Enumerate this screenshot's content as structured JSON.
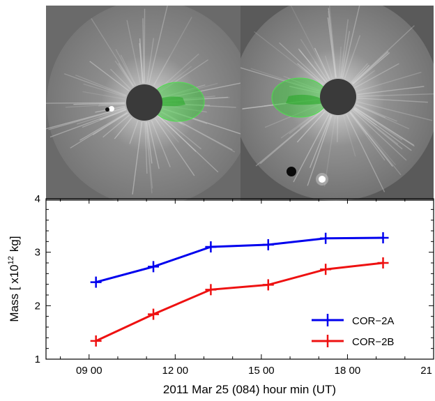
{
  "images": {
    "left_panel": "coronagraph-difference-image-cor2b",
    "right_panel": "coronagraph-difference-image-cor2a"
  },
  "chart_data": {
    "type": "line",
    "xlabel": "2011 Mar 25 (084)  hour min (UT)",
    "ylabel": "Mass  [ x10",
    "ylabel_exponent": "12",
    "ylabel_unit": "kg]",
    "xlim": [
      7.5,
      21.0
    ],
    "ylim": [
      1,
      4
    ],
    "x_ticks": [
      {
        "value": 9.0,
        "label": "09 00"
      },
      {
        "value": 12.0,
        "label": "12 00"
      },
      {
        "value": 15.0,
        "label": "15 00"
      },
      {
        "value": 18.0,
        "label": "18 00"
      },
      {
        "value": 21.0,
        "label": "21 00"
      }
    ],
    "y_ticks": [
      {
        "value": 1,
        "label": "1"
      },
      {
        "value": 2,
        "label": "2"
      },
      {
        "value": 3,
        "label": "3"
      },
      {
        "value": 4,
        "label": "4"
      }
    ],
    "legend_position": "bottom-right",
    "series": [
      {
        "name": "COR−2A",
        "color": "#0000ee",
        "x": [
          9.24,
          11.24,
          13.24,
          15.24,
          17.24,
          19.24
        ],
        "y": [
          2.44,
          2.73,
          3.1,
          3.14,
          3.26,
          3.27
        ]
      },
      {
        "name": "COR−2B",
        "color": "#ee1111",
        "x": [
          9.24,
          11.24,
          13.24,
          15.24,
          17.24,
          19.24
        ],
        "y": [
          1.34,
          1.84,
          2.3,
          2.39,
          2.68,
          2.8
        ]
      }
    ]
  }
}
